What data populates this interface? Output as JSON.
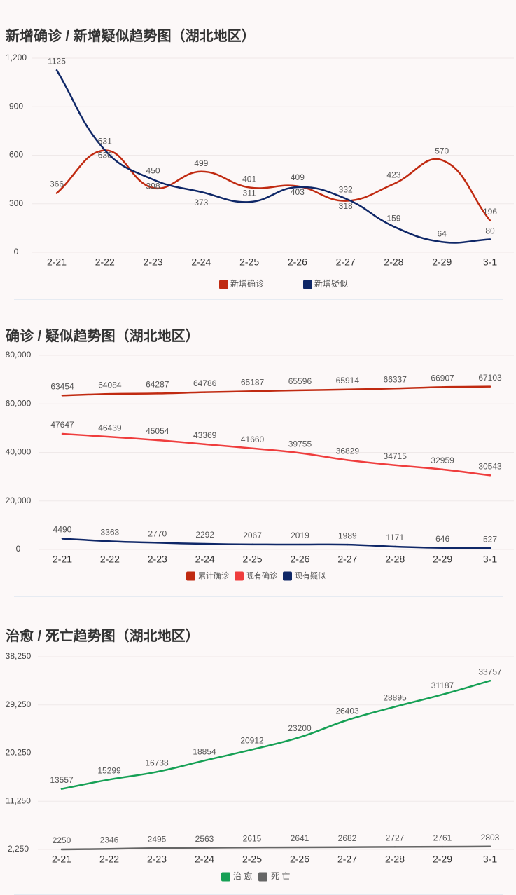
{
  "chart_data": [
    {
      "type": "line",
      "title": "新增确诊 / 新增疑似趋势图（湖北地区）",
      "categories": [
        "2-21",
        "2-22",
        "2-23",
        "2-24",
        "2-25",
        "2-26",
        "2-27",
        "2-28",
        "2-29",
        "3-1"
      ],
      "ylim": [
        0,
        1200
      ],
      "yticks": [
        "0",
        "300",
        "600",
        "900",
        "1,200"
      ],
      "grid": true,
      "smooth": true,
      "legend": "bottom-center",
      "series": [
        {
          "name": "新增确诊",
          "color": "#c02a11",
          "values": [
            366,
            630,
            398,
            499,
            401,
            409,
            318,
            423,
            570,
            196
          ]
        },
        {
          "name": "新增疑似",
          "color": "#0f2767",
          "values": [
            1125,
            631,
            450,
            373,
            311,
            403,
            332,
            159,
            64,
            80
          ]
        }
      ]
    },
    {
      "type": "line",
      "title": "确诊 / 疑似趋势图（湖北地区）",
      "categories": [
        "2-21",
        "2-22",
        "2-23",
        "2-24",
        "2-25",
        "2-26",
        "2-27",
        "2-28",
        "2-29",
        "3-1"
      ],
      "ylim": [
        0,
        80000
      ],
      "yticks": [
        "0",
        "20,000",
        "40,000",
        "60,000",
        "80,000"
      ],
      "grid": true,
      "smooth": true,
      "legend": "bottom-center",
      "series": [
        {
          "name": "累计确诊",
          "color": "#c02a11",
          "values": [
            63454,
            64084,
            64287,
            64786,
            65187,
            65596,
            65914,
            66337,
            66907,
            67103
          ]
        },
        {
          "name": "现有确诊",
          "color": "#ef3d3d",
          "values": [
            47647,
            46439,
            45054,
            43369,
            41660,
            39755,
            36829,
            34715,
            32959,
            30543
          ]
        },
        {
          "name": "现有疑似",
          "color": "#0f2767",
          "values": [
            4490,
            3363,
            2770,
            2292,
            2067,
            2019,
            1989,
            1171,
            646,
            527
          ]
        }
      ]
    },
    {
      "type": "line",
      "title": "治愈 / 死亡趋势图（湖北地区）",
      "categories": [
        "2-21",
        "2-22",
        "2-23",
        "2-24",
        "2-25",
        "2-26",
        "2-27",
        "2-28",
        "2-29",
        "3-1"
      ],
      "ylim": [
        2250,
        38250
      ],
      "yticks": [
        "2,250",
        "11,250",
        "20,250",
        "29,250",
        "38,250"
      ],
      "grid": true,
      "smooth": true,
      "legend": "bottom-center",
      "series": [
        {
          "name": "治 愈",
          "color": "#16a055",
          "values": [
            13557,
            15299,
            16738,
            18854,
            20912,
            23200,
            26403,
            28895,
            31187,
            33757
          ]
        },
        {
          "name": "死 亡",
          "color": "#666666",
          "values": [
            2250,
            2346,
            2495,
            2563,
            2615,
            2641,
            2682,
            2727,
            2761,
            2803
          ]
        }
      ]
    }
  ]
}
